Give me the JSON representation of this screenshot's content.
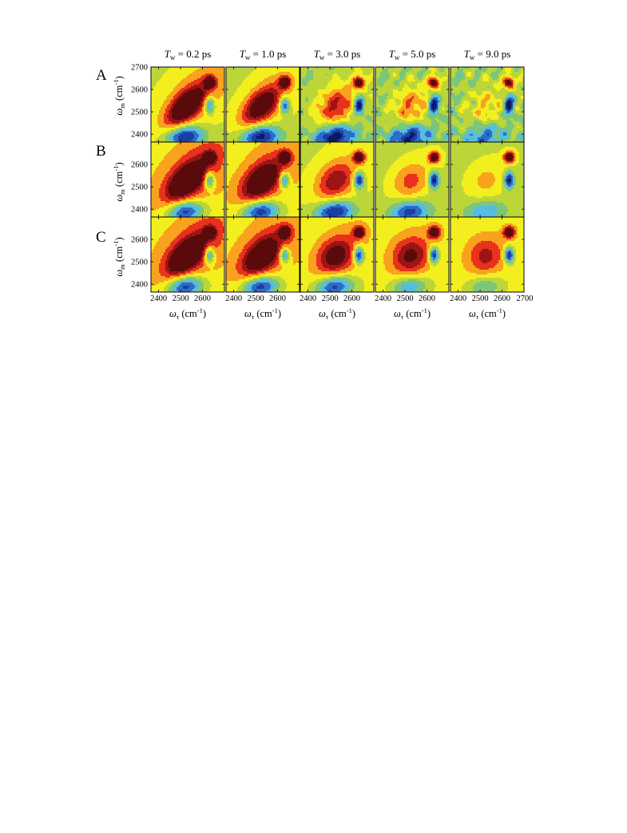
{
  "figure": {
    "row_labels": [
      "A",
      "B",
      "C"
    ],
    "column_titles": [
      {
        "var": "T",
        "sub": "w",
        "rest": " = 0.2 ps"
      },
      {
        "var": "T",
        "sub": "w",
        "rest": " = 1.0 ps"
      },
      {
        "var": "T",
        "sub": "w",
        "rest": " = 3.0 ps"
      },
      {
        "var": "T",
        "sub": "w",
        "rest": " = 5.0 ps"
      },
      {
        "var": "T",
        "sub": "w",
        "rest": " = 9.0 ps"
      }
    ],
    "ylabel": {
      "var": "ω",
      "sub": "m",
      "unit": " (cm",
      "sup": "-1",
      "close": ")"
    },
    "xlabel": {
      "var": "ω",
      "sub": "τ",
      "unit": " (cm",
      "sup": "-1",
      "close": ")"
    }
  },
  "chart_data": {
    "type": "heatmap",
    "subtype": "2D IR contour plot grid",
    "rows": 3,
    "cols": 5,
    "x_range": [
      2365,
      2700
    ],
    "y_range": [
      2365,
      2700
    ],
    "y_ticks": [
      2400,
      2500,
      2600,
      2700
    ],
    "y_ticks_other_rows": [
      2400,
      2500,
      2600
    ],
    "x_ticks_first_col": [
      2400,
      2500,
      2600
    ],
    "x_ticks_other_cols": [
      2400,
      2500,
      2600
    ],
    "x_ticks_last_col": [
      2400,
      2500,
      2600,
      2700
    ],
    "colormap": [
      "#0a1a66",
      "#1b3fa6",
      "#2f6cc6",
      "#56bde0",
      "#7cc67a",
      "#bcd63a",
      "#f3ef1e",
      "#f9a21e",
      "#e8321c",
      "#9c1414",
      "#5a0a0a"
    ],
    "waiting_times_ps": [
      0.2,
      1.0,
      3.0,
      5.0,
      9.0
    ],
    "panels": [
      [
        {
          "b": 0.33,
          "c": 0.35,
          "r": 0.62,
          "p1": 0.95,
          "p2": 1.0,
          "n1": 0.9,
          "n2": 0.75,
          "noise": 0.0
        },
        {
          "b": 0.3,
          "c": 0.27,
          "r": 0.54,
          "p1": 0.82,
          "p2": 1.0,
          "n1": 0.9,
          "n2": 0.75,
          "noise": 0.0
        },
        {
          "b": 0.22,
          "c": 0.15,
          "r": 0.28,
          "p1": 0.55,
          "p2": 1.0,
          "n1": 0.85,
          "n2": 0.95,
          "noise": 0.12
        },
        {
          "b": 0.2,
          "c": 0.1,
          "r": 0.12,
          "p1": 0.4,
          "p2": 1.0,
          "n1": 0.7,
          "n2": 0.95,
          "noise": 0.18
        },
        {
          "b": 0.2,
          "c": 0.1,
          "r": 0.06,
          "p1": 0.22,
          "p2": 1.0,
          "n1": 0.45,
          "n2": 0.9,
          "noise": 0.22
        }
      ],
      [
        {
          "b": 0.46,
          "c": 0.35,
          "r": 0.55,
          "p1": 0.92,
          "p2": 1.0,
          "n1": 0.9,
          "n2": 0.75,
          "noise": 0.0
        },
        {
          "b": 0.44,
          "c": 0.27,
          "r": 0.48,
          "p1": 0.82,
          "p2": 1.0,
          "n1": 0.9,
          "n2": 0.75,
          "noise": 0.0
        },
        {
          "b": 0.34,
          "c": 0.15,
          "r": 0.28,
          "p1": 0.55,
          "p2": 1.0,
          "n1": 0.85,
          "n2": 0.95,
          "noise": 0.0
        },
        {
          "b": 0.3,
          "c": 0.1,
          "r": 0.15,
          "p1": 0.38,
          "p2": 1.0,
          "n1": 0.7,
          "n2": 0.95,
          "noise": 0.0
        },
        {
          "b": 0.3,
          "c": 0.08,
          "r": 0.06,
          "p1": 0.22,
          "p2": 1.0,
          "n1": 0.45,
          "n2": 0.9,
          "noise": 0.0
        }
      ],
      [
        {
          "b": 0.46,
          "c": 0.35,
          "r": 0.55,
          "p1": 0.92,
          "p2": 1.0,
          "n1": 0.9,
          "n2": 0.75,
          "noise": 0.0
        },
        {
          "b": 0.46,
          "c": 0.27,
          "r": 0.48,
          "p1": 0.82,
          "p2": 1.0,
          "n1": 0.9,
          "n2": 0.75,
          "noise": 0.0
        },
        {
          "b": 0.42,
          "c": 0.15,
          "r": 0.22,
          "p1": 0.66,
          "p2": 1.0,
          "n1": 0.8,
          "n2": 0.95,
          "noise": 0.0
        },
        {
          "b": 0.44,
          "c": 0.1,
          "r": 0.08,
          "p1": 0.58,
          "p2": 1.0,
          "n1": 0.55,
          "n2": 0.95,
          "noise": 0.0
        },
        {
          "b": 0.44,
          "c": 0.06,
          "r": 0.04,
          "p1": 0.44,
          "p2": 1.0,
          "n1": 0.4,
          "n2": 0.95,
          "noise": 0.0
        }
      ]
    ]
  }
}
